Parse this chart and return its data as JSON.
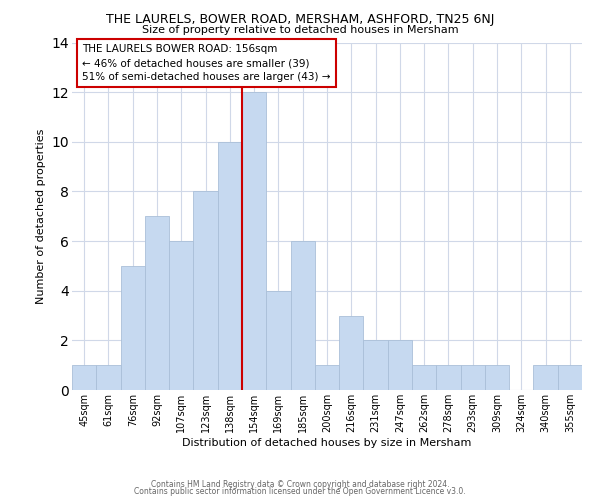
{
  "title": "THE LAURELS, BOWER ROAD, MERSHAM, ASHFORD, TN25 6NJ",
  "subtitle": "Size of property relative to detached houses in Mersham",
  "xlabel": "Distribution of detached houses by size in Mersham",
  "ylabel": "Number of detached properties",
  "footer_line1": "Contains HM Land Registry data © Crown copyright and database right 2024.",
  "footer_line2": "Contains public sector information licensed under the Open Government Licence v3.0.",
  "bin_labels": [
    "45sqm",
    "61sqm",
    "76sqm",
    "92sqm",
    "107sqm",
    "123sqm",
    "138sqm",
    "154sqm",
    "169sqm",
    "185sqm",
    "200sqm",
    "216sqm",
    "231sqm",
    "247sqm",
    "262sqm",
    "278sqm",
    "293sqm",
    "309sqm",
    "324sqm",
    "340sqm",
    "355sqm"
  ],
  "bar_heights": [
    1,
    1,
    5,
    7,
    6,
    8,
    10,
    12,
    4,
    6,
    1,
    3,
    2,
    2,
    1,
    1,
    1,
    1,
    0,
    1,
    1
  ],
  "highlight_index": 7,
  "bar_color": "#c6d9f0",
  "bar_edge_color": "#aabfd8",
  "highlight_line_color": "#cc0000",
  "annotation_title": "THE LAURELS BOWER ROAD: 156sqm",
  "annotation_line1": "← 46% of detached houses are smaller (39)",
  "annotation_line2": "51% of semi-detached houses are larger (43) →",
  "annotation_box_color": "#ffffff",
  "annotation_box_edge": "#cc0000",
  "ylim": [
    0,
    14
  ],
  "yticks": [
    0,
    2,
    4,
    6,
    8,
    10,
    12,
    14
  ],
  "background_color": "#ffffff",
  "grid_color": "#d0d8e8",
  "title_fontsize": 9,
  "subtitle_fontsize": 8,
  "xlabel_fontsize": 8,
  "ylabel_fontsize": 8,
  "tick_fontsize": 7,
  "annotation_fontsize": 7.5,
  "footer_fontsize": 5.5
}
